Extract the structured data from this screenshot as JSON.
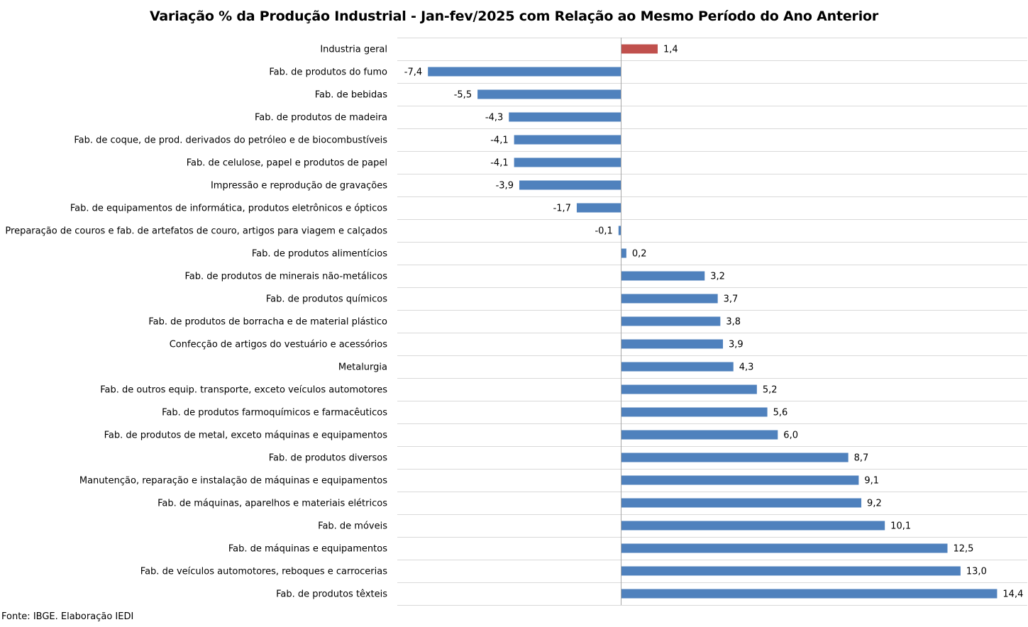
{
  "chart_data": {
    "type": "bar",
    "orientation": "horizontal",
    "title": "Variação % da Produção Industrial - Jan-fev/2025 com Relação ao Mesmo Período do Ano Anterior",
    "xlabel": "",
    "ylabel": "",
    "xlim": [
      -8,
      15
    ],
    "grid": "horizontal separators",
    "legend": "none",
    "bar_color": "#4F81BD",
    "highlight_color": "#C0504D",
    "highlight_category": "Industria geral",
    "categories": [
      "Industria geral",
      "Fab. de produtos do fumo",
      "Fab. de bebidas",
      "Fab. de produtos de madeira",
      "Fab. de coque, de prod. derivados do petróleo e de biocombustíveis",
      "Fab. de celulose, papel e produtos de papel",
      "Impressão e reprodução de gravações",
      "Fab. de equipamentos de informática, produtos eletrônicos e ópticos",
      "Preparação de couros e fab. de artefatos de couro, artigos para viagem e calçados",
      "Fab. de produtos alimentícios",
      "Fab. de produtos de minerais não-metálicos",
      "Fab. de produtos químicos",
      "Fab. de produtos de borracha e de material plástico",
      "Confecção de artigos do vestuário e acessórios",
      "Metalurgia",
      "Fab. de outros equip. transporte, exceto veículos automotores",
      "Fab. de produtos farmoquímicos e farmacêuticos",
      "Fab. de produtos de metal, exceto máquinas e equipamentos",
      "Fab. de produtos diversos",
      "Manutenção, reparação e instalação de máquinas e equipamentos",
      "Fab. de máquinas, aparelhos e materiais elétricos",
      "Fab. de móveis",
      "Fab. de máquinas e equipamentos",
      "Fab. de veículos automotores, reboques e carrocerias",
      "Fab. de produtos têxteis"
    ],
    "values": [
      1.4,
      -7.4,
      -5.5,
      -4.3,
      -4.1,
      -4.1,
      -3.9,
      -1.7,
      -0.1,
      0.2,
      3.2,
      3.7,
      3.8,
      3.9,
      4.3,
      5.2,
      5.6,
      6.0,
      8.7,
      9.1,
      9.2,
      10.1,
      12.5,
      13.0,
      14.4
    ],
    "value_labels": [
      "1,4",
      "-7,4",
      "-5,5",
      "-4,3",
      "-4,1",
      "-4,1",
      "-3,9",
      "-1,7",
      "-0,1",
      "0,2",
      "3,2",
      "3,7",
      "3,8",
      "3,9",
      "4,3",
      "5,2",
      "5,6",
      "6,0",
      "8,7",
      "9,1",
      "9,2",
      "10,1",
      "12,5",
      "13,0",
      "14,4"
    ]
  },
  "source_note": "Fonte: IBGE. Elaboração IEDI"
}
